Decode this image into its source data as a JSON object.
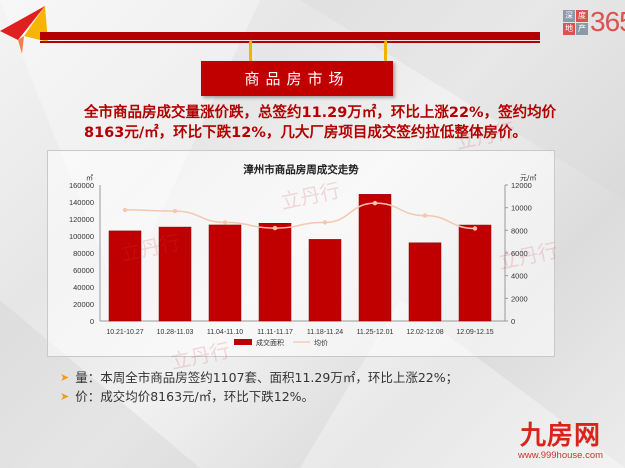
{
  "header": {
    "section_title": "商品房市场",
    "logo_left_chars": [
      "深",
      "度",
      "地",
      "产"
    ],
    "logo_number": "365"
  },
  "headline": {
    "line1": "全市商品房成交量涨价跌，总签约11.29万㎡，环比上涨22%，签约均价",
    "line2": "8163元/㎡，环比下跌12%，几大厂房项目成交签约拉低整体房价。"
  },
  "chart_data": {
    "type": "bar",
    "title": "漳州市商品房周成交走势",
    "categories": [
      "10.21-10.27",
      "10.28-11.03",
      "11.04-11.10",
      "11.11-11.17",
      "11.18-11.24",
      "11.25-12.01",
      "12.02-12.08",
      "12.09-12.15"
    ],
    "series": [
      {
        "name": "成交面积",
        "type": "bar",
        "axis": "left",
        "color": "#c00000",
        "values": [
          106000,
          110500,
          113000,
          115000,
          96000,
          149000,
          92000,
          112900
        ]
      },
      {
        "name": "均价",
        "type": "line",
        "axis": "right",
        "color": "#f4c7b0",
        "values": [
          9800,
          9700,
          8700,
          8200,
          8700,
          10400,
          9300,
          8163
        ]
      }
    ],
    "left_axis": {
      "unit": "㎡",
      "ticks": [
        0,
        20000,
        40000,
        60000,
        80000,
        100000,
        120000,
        140000,
        160000
      ],
      "ylim": [
        0,
        160000
      ]
    },
    "right_axis": {
      "unit": "元/㎡",
      "ticks": [
        0,
        2000,
        4000,
        6000,
        8000,
        10000,
        12000
      ],
      "ylim": [
        0,
        12000
      ]
    },
    "legend": {
      "position": "bottom",
      "entries": [
        "成交面积",
        "均价"
      ]
    },
    "grid": false
  },
  "bullets": [
    {
      "text": "量：本周全市商品房签约1107套、面积11.29万㎡，环比上涨22%；"
    },
    {
      "text": "价：成交均价8163元/㎡，环比下跌12%。"
    }
  ],
  "footer_brand": {
    "name": "九房网",
    "url": "www.999house.com"
  },
  "watermark": {
    "text": "立丹行",
    "sub": "LIDANHANG"
  },
  "colors": {
    "accent_red": "#c00000",
    "headline_red": "#b30000",
    "line_color": "#f4c7b0"
  }
}
